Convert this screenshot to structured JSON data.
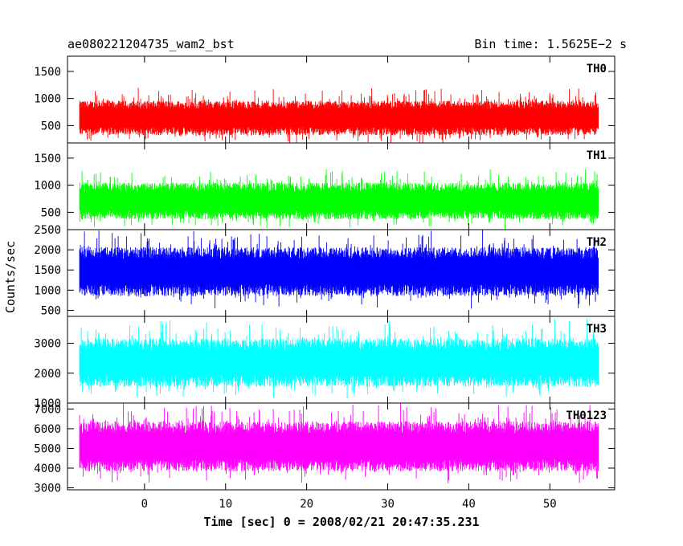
{
  "header": {
    "title": "ae080221204735_wam2_bst",
    "bin_time": "Bin time: 1.5625E−2 s"
  },
  "axes": {
    "ylabel": "Counts/sec",
    "xlabel": "Time [sec] 0 = 2008/02/21 20:47:35.231",
    "x_ticks": [
      0,
      10,
      20,
      30,
      40,
      50
    ],
    "xlim": [
      -9.5,
      58
    ]
  },
  "chart_data": [
    {
      "type": "area",
      "name": "TH0",
      "color": "#ff0000",
      "x_range": [
        -8,
        56
      ],
      "mean": 650,
      "spread": 440,
      "ylim": [
        180,
        1780
      ],
      "y_ticks": [
        500,
        1000,
        1500
      ]
    },
    {
      "type": "area",
      "name": "TH1",
      "color": "#00ff00",
      "x_range": [
        -8,
        56
      ],
      "mean": 720,
      "spread": 470,
      "ylim": [
        180,
        1780
      ],
      "y_ticks": [
        500,
        1000,
        1500
      ]
    },
    {
      "type": "area",
      "name": "TH2",
      "color": "#0000ff",
      "x_range": [
        -8,
        56
      ],
      "mean": 1480,
      "spread": 840,
      "ylim": [
        350,
        2500
      ],
      "y_ticks": [
        500,
        1000,
        1500,
        2000,
        2500
      ]
    },
    {
      "type": "area",
      "name": "TH3",
      "color": "#00ffff",
      "x_range": [
        -8,
        56
      ],
      "mean": 2380,
      "spread": 1120,
      "ylim": [
        1000,
        3900
      ],
      "y_ticks": [
        1000,
        2000,
        3000
      ]
    },
    {
      "type": "area",
      "name": "TH0123",
      "color": "#ff00ff",
      "x_range": [
        -8,
        56
      ],
      "mean": 5150,
      "spread": 1750,
      "ylim": [
        2900,
        7300
      ],
      "y_ticks": [
        3000,
        4000,
        5000,
        6000,
        7000
      ]
    }
  ]
}
